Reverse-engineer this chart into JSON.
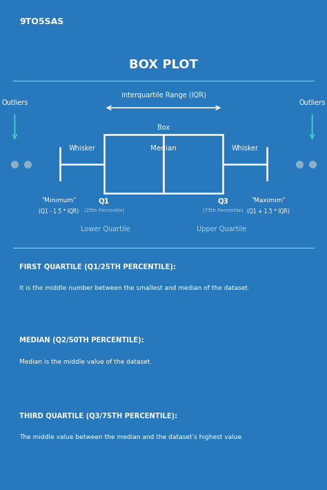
{
  "bg_color": "#2878be",
  "white": "#ffffff",
  "light_blue": "#a8d4e8",
  "cyan": "#40c8c8",
  "gray_circle": "#8ab0c8",
  "title": "BOX PLOT",
  "sections": [
    {
      "heading": "FIRST QUARTILE (Q1/25TH PERCENTILE):",
      "body": "It is the middle number between the smallest and median of the dataset."
    },
    {
      "heading": "MEDIAN (Q2/50TH PERCENTILE):",
      "body": "Median is the middle value of the dataset."
    },
    {
      "heading": "THIRD QUARTILE (Q3/75TH PERCENTILE):",
      "body": "The middle value between the median and the dataset’s highest value."
    }
  ]
}
